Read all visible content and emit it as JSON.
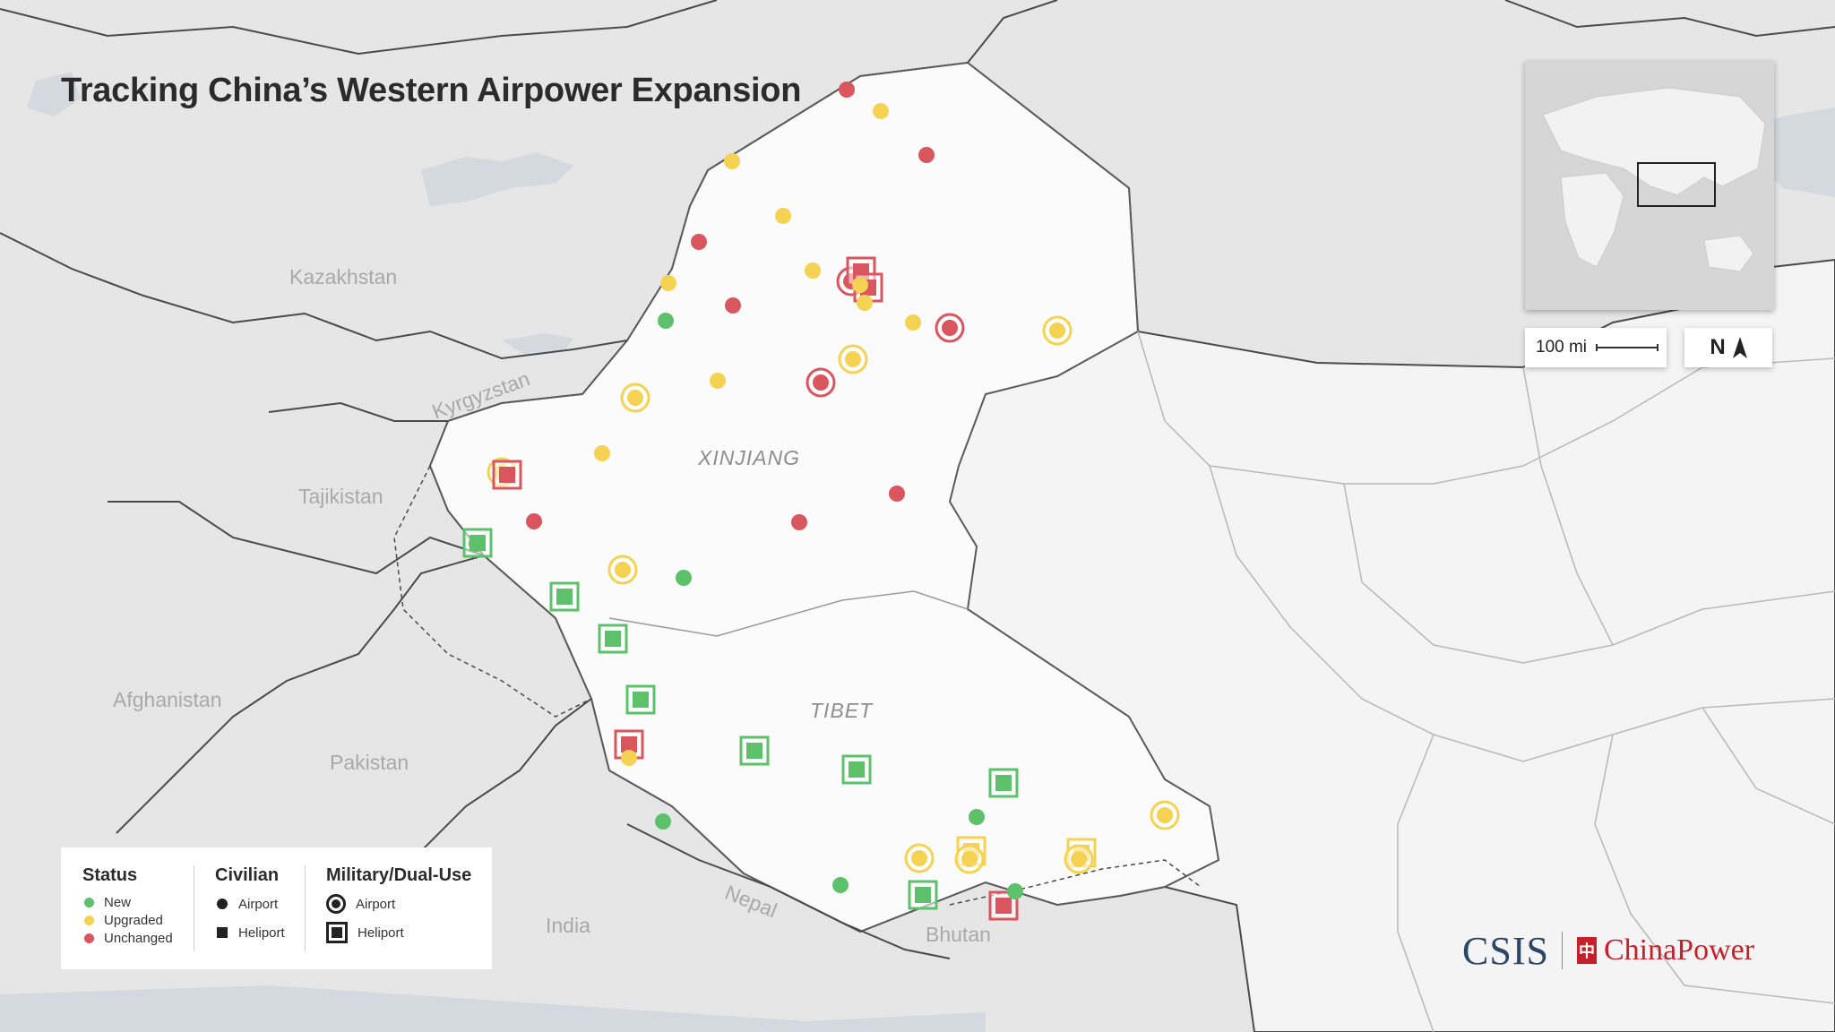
{
  "title": "Tracking China’s Western Airpower Expansion",
  "colors": {
    "new": "#5cc16a",
    "upgraded": "#f5d252",
    "unchanged": "#d9565f",
    "land": "#e6e6e6",
    "china": "#f4f4f4",
    "highlight": "#fbfbfb",
    "border": "#4a4a4a",
    "water": "#d3d9de"
  },
  "labels": {
    "kazakhstan": "Kazakhstan",
    "kyrgyzstan": "Kyrgyzstan",
    "tajikistan": "Tajikistan",
    "afghanistan": "Afghanistan",
    "pakistan": "Pakistan",
    "india": "India",
    "nepal": "Nepal",
    "bhutan": "Bhutan",
    "xinjiang": "XINJIANG",
    "tibet": "TIBET"
  },
  "scale": {
    "label": "100 mi"
  },
  "north": {
    "label": "N"
  },
  "legend": {
    "status_heading": "Status",
    "status_new": "New",
    "status_upgraded": "Upgraded",
    "status_unchanged": "Unchanged",
    "civilian_heading": "Civilian",
    "civilian_airport": "Airport",
    "civilian_heliport": "Heliport",
    "military_heading": "Military/Dual-Use",
    "military_airport": "Airport",
    "military_heliport": "Heliport"
  },
  "branding": {
    "csis": "CSIS",
    "chinapower": "ChinaPower",
    "chinapower_icon": "chinapower-logo-icon"
  },
  "facilities": [
    {
      "status": "unchanged",
      "kind": "civ-airport"
    },
    {
      "status": "upgraded",
      "kind": "civ-airport"
    },
    {
      "status": "unchanged",
      "kind": "civ-airport"
    },
    {
      "status": "upgraded",
      "kind": "civ-airport"
    },
    {
      "status": "upgraded",
      "kind": "civ-airport"
    },
    {
      "status": "unchanged",
      "kind": "civ-airport"
    },
    {
      "status": "upgraded",
      "kind": "civ-airport"
    },
    {
      "status": "upgraded",
      "kind": "civ-airport"
    },
    {
      "status": "unchanged",
      "kind": "civ-airport"
    },
    {
      "status": "new",
      "kind": "civ-airport"
    },
    {
      "status": "unchanged",
      "kind": "mil-airport"
    },
    {
      "status": "unchanged",
      "kind": "mil-heliport"
    },
    {
      "status": "unchanged",
      "kind": "mil-heliport"
    },
    {
      "status": "upgraded",
      "kind": "civ-airport"
    },
    {
      "status": "upgraded",
      "kind": "civ-airport"
    },
    {
      "status": "upgraded",
      "kind": "civ-airport"
    },
    {
      "status": "unchanged",
      "kind": "mil-airport"
    },
    {
      "status": "upgraded",
      "kind": "mil-airport"
    },
    {
      "status": "upgraded",
      "kind": "mil-airport"
    },
    {
      "status": "unchanged",
      "kind": "mil-airport"
    },
    {
      "status": "upgraded",
      "kind": "civ-airport"
    },
    {
      "status": "upgraded",
      "kind": "mil-airport"
    },
    {
      "status": "upgraded",
      "kind": "civ-airport"
    },
    {
      "status": "upgraded",
      "kind": "mil-airport"
    },
    {
      "status": "unchanged",
      "kind": "mil-heliport"
    },
    {
      "status": "unchanged",
      "kind": "civ-airport"
    },
    {
      "status": "unchanged",
      "kind": "civ-airport"
    },
    {
      "status": "unchanged",
      "kind": "civ-airport"
    },
    {
      "status": "new",
      "kind": "mil-heliport"
    },
    {
      "status": "new",
      "kind": "civ-airport"
    },
    {
      "status": "upgraded",
      "kind": "mil-airport"
    },
    {
      "status": "new",
      "kind": "civ-airport"
    },
    {
      "status": "new",
      "kind": "mil-heliport"
    },
    {
      "status": "new",
      "kind": "mil-heliport"
    },
    {
      "status": "new",
      "kind": "mil-heliport"
    },
    {
      "status": "unchanged",
      "kind": "mil-heliport"
    },
    {
      "status": "upgraded",
      "kind": "civ-airport"
    },
    {
      "status": "new",
      "kind": "mil-heliport"
    },
    {
      "status": "new",
      "kind": "mil-heliport"
    },
    {
      "status": "new",
      "kind": "mil-heliport"
    },
    {
      "status": "new",
      "kind": "civ-airport"
    },
    {
      "status": "upgraded",
      "kind": "mil-airport"
    },
    {
      "status": "new",
      "kind": "civ-airport"
    },
    {
      "status": "upgraded",
      "kind": "mil-airport"
    },
    {
      "status": "upgraded",
      "kind": "mil-heliport"
    },
    {
      "status": "upgraded",
      "kind": "mil-airport"
    },
    {
      "status": "upgraded",
      "kind": "mil-heliport"
    },
    {
      "status": "upgraded",
      "kind": "mil-airport"
    },
    {
      "status": "new",
      "kind": "civ-airport"
    },
    {
      "status": "new",
      "kind": "mil-heliport"
    },
    {
      "status": "unchanged",
      "kind": "mil-heliport"
    },
    {
      "status": "new",
      "kind": "civ-airport"
    }
  ]
}
